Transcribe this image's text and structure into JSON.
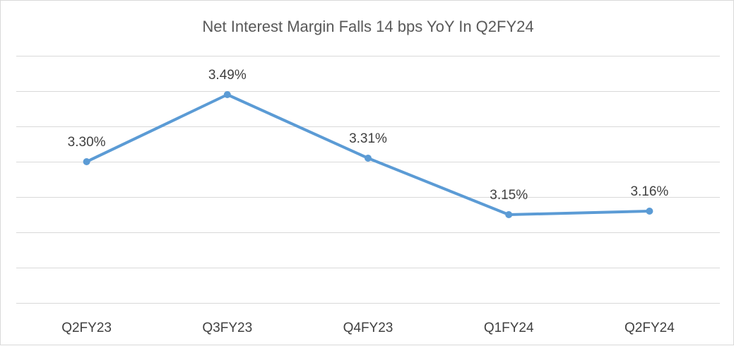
{
  "chart_data": {
    "type": "line",
    "title": "Net Interest Margin Falls 14 bps YoY In Q2FY24",
    "categories": [
      "Q2FY23",
      "Q3FY23",
      "Q4FY23",
      "Q1FY24",
      "Q2FY24"
    ],
    "values": [
      3.3,
      3.49,
      3.31,
      3.15,
      3.16
    ],
    "data_labels": [
      "3.30%",
      "3.49%",
      "3.31%",
      "3.15%",
      "3.16%"
    ],
    "ylim": [
      2.9,
      3.6
    ],
    "y_gridlines": [
      2.9,
      3.0,
      3.1,
      3.2,
      3.3,
      3.4,
      3.5,
      3.6
    ],
    "y_tick_labels_shown": false,
    "grid": true,
    "legend": "none",
    "series_color": "#5b9bd5"
  }
}
